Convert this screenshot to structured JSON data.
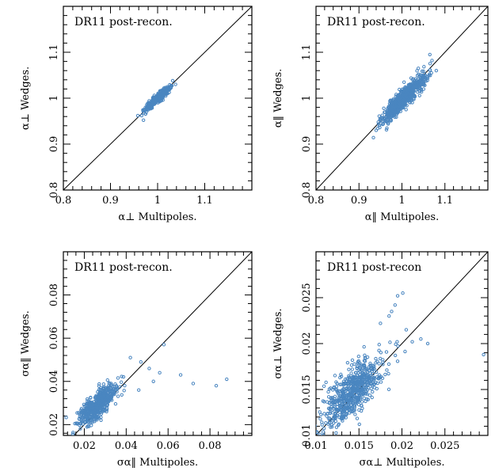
{
  "colors": {
    "points": "#4a86c0",
    "axes": "#000000"
  },
  "chart_data": [
    {
      "type": "scatter",
      "title": "DR11 post-recon.",
      "xlabel": "α⊥ Multipoles.",
      "ylabel": "α⊥ Wedges.",
      "xlim": [
        0.8,
        1.2
      ],
      "ylim": [
        0.8,
        1.2
      ],
      "xticks": [
        0.8,
        0.9,
        1,
        1.1
      ],
      "yticks": [
        0.8,
        0.9,
        1,
        1.1
      ],
      "tick_labels_x": [
        "0.8",
        "0.9",
        "1",
        "1.1"
      ],
      "tick_labels_y": [
        "0.8",
        "0.9",
        "1",
        "1.1"
      ],
      "diagonal": true,
      "cloud": {
        "n": 420,
        "cx": 1.0,
        "cy": 1.0,
        "sdx": 0.013,
        "sdy": 0.012,
        "rho": 0.93
      },
      "outliers": [
        [
          0.958,
          0.962
        ],
        [
          1.032,
          1.038
        ],
        [
          1.038,
          1.03
        ],
        [
          0.97,
          0.952
        ]
      ]
    },
    {
      "type": "scatter",
      "title": "DR11 post-recon.",
      "xlabel": "α‖ Multipoles.",
      "ylabel": "α‖ Wedges.",
      "xlim": [
        0.8,
        1.2
      ],
      "ylim": [
        0.8,
        1.2
      ],
      "xticks": [
        0.8,
        0.9,
        1,
        1.1
      ],
      "yticks": [
        0.8,
        0.9,
        1,
        1.1
      ],
      "tick_labels_x": [
        "0.8",
        "0.9",
        "1",
        "1.1"
      ],
      "tick_labels_y": [
        "0.8",
        "0.9",
        "1",
        "1.1"
      ],
      "diagonal": true,
      "cloud": {
        "n": 650,
        "cx": 1.005,
        "cy": 1.0,
        "sdx": 0.025,
        "sdy": 0.025,
        "rho": 0.9
      },
      "outliers": [
        [
          1.065,
          1.095
        ],
        [
          1.07,
          1.082
        ],
        [
          0.94,
          0.93
        ],
        [
          0.945,
          0.948
        ],
        [
          1.08,
          1.06
        ]
      ]
    },
    {
      "type": "scatter",
      "title": "DR11 post-recon.",
      "xlabel": "σα‖ Multipoles.",
      "ylabel": "σα‖ Wedges.",
      "xlim": [
        0.01,
        0.1
      ],
      "ylim": [
        0.015,
        0.1
      ],
      "xticks": [
        0.02,
        0.04,
        0.06,
        0.08
      ],
      "yticks": [
        0.02,
        0.04,
        0.06,
        0.08
      ],
      "tick_labels_x": [
        "0.02",
        "0.04",
        "0.06",
        "0.08"
      ],
      "tick_labels_y": [
        "0.02",
        "0.04",
        "0.06",
        "0.08"
      ],
      "diagonal": true,
      "cloud": {
        "n": 560,
        "cx": 0.026,
        "cy": 0.029,
        "sdx": 0.0045,
        "sdy": 0.0045,
        "rho": 0.75
      },
      "outliers": [
        [
          0.058,
          0.057
        ],
        [
          0.066,
          0.043
        ],
        [
          0.072,
          0.039
        ],
        [
          0.083,
          0.038
        ],
        [
          0.088,
          0.041
        ],
        [
          0.051,
          0.046
        ],
        [
          0.056,
          0.044
        ],
        [
          0.047,
          0.049
        ],
        [
          0.042,
          0.051
        ],
        [
          0.053,
          0.04
        ],
        [
          0.046,
          0.036
        ]
      ]
    },
    {
      "type": "scatter",
      "title": "DR11 post-recon",
      "xlabel": "σα⊥ Multipoles.",
      "ylabel": "σα⊥ Wedges.",
      "xlim": [
        0.01,
        0.03
      ],
      "ylim": [
        0.01,
        0.03
      ],
      "xticks": [
        0.01,
        0.015,
        0.02,
        0.025
      ],
      "yticks": [
        0.01,
        0.015,
        0.02,
        0.025
      ],
      "tick_labels_x": [
        "0.01",
        "0.015",
        "0.02",
        "0.025"
      ],
      "tick_labels_y": [
        "0.01",
        "0.015",
        "0.02",
        "0.025"
      ],
      "diagonal": true,
      "cloud": {
        "n": 640,
        "cx": 0.0143,
        "cy": 0.0148,
        "sdx": 0.0017,
        "sdy": 0.0019,
        "rho": 0.72
      },
      "outliers": [
        [
          0.0195,
          0.0252
        ],
        [
          0.0201,
          0.0255
        ],
        [
          0.0188,
          0.0235
        ],
        [
          0.0222,
          0.0205
        ],
        [
          0.023,
          0.02
        ],
        [
          0.0185,
          0.023
        ],
        [
          0.0175,
          0.0222
        ],
        [
          0.0295,
          0.0188
        ],
        [
          0.0205,
          0.0215
        ],
        [
          0.0192,
          0.0242
        ],
        [
          0.0105,
          0.0118
        ],
        [
          0.0212,
          0.0202
        ]
      ]
    }
  ]
}
